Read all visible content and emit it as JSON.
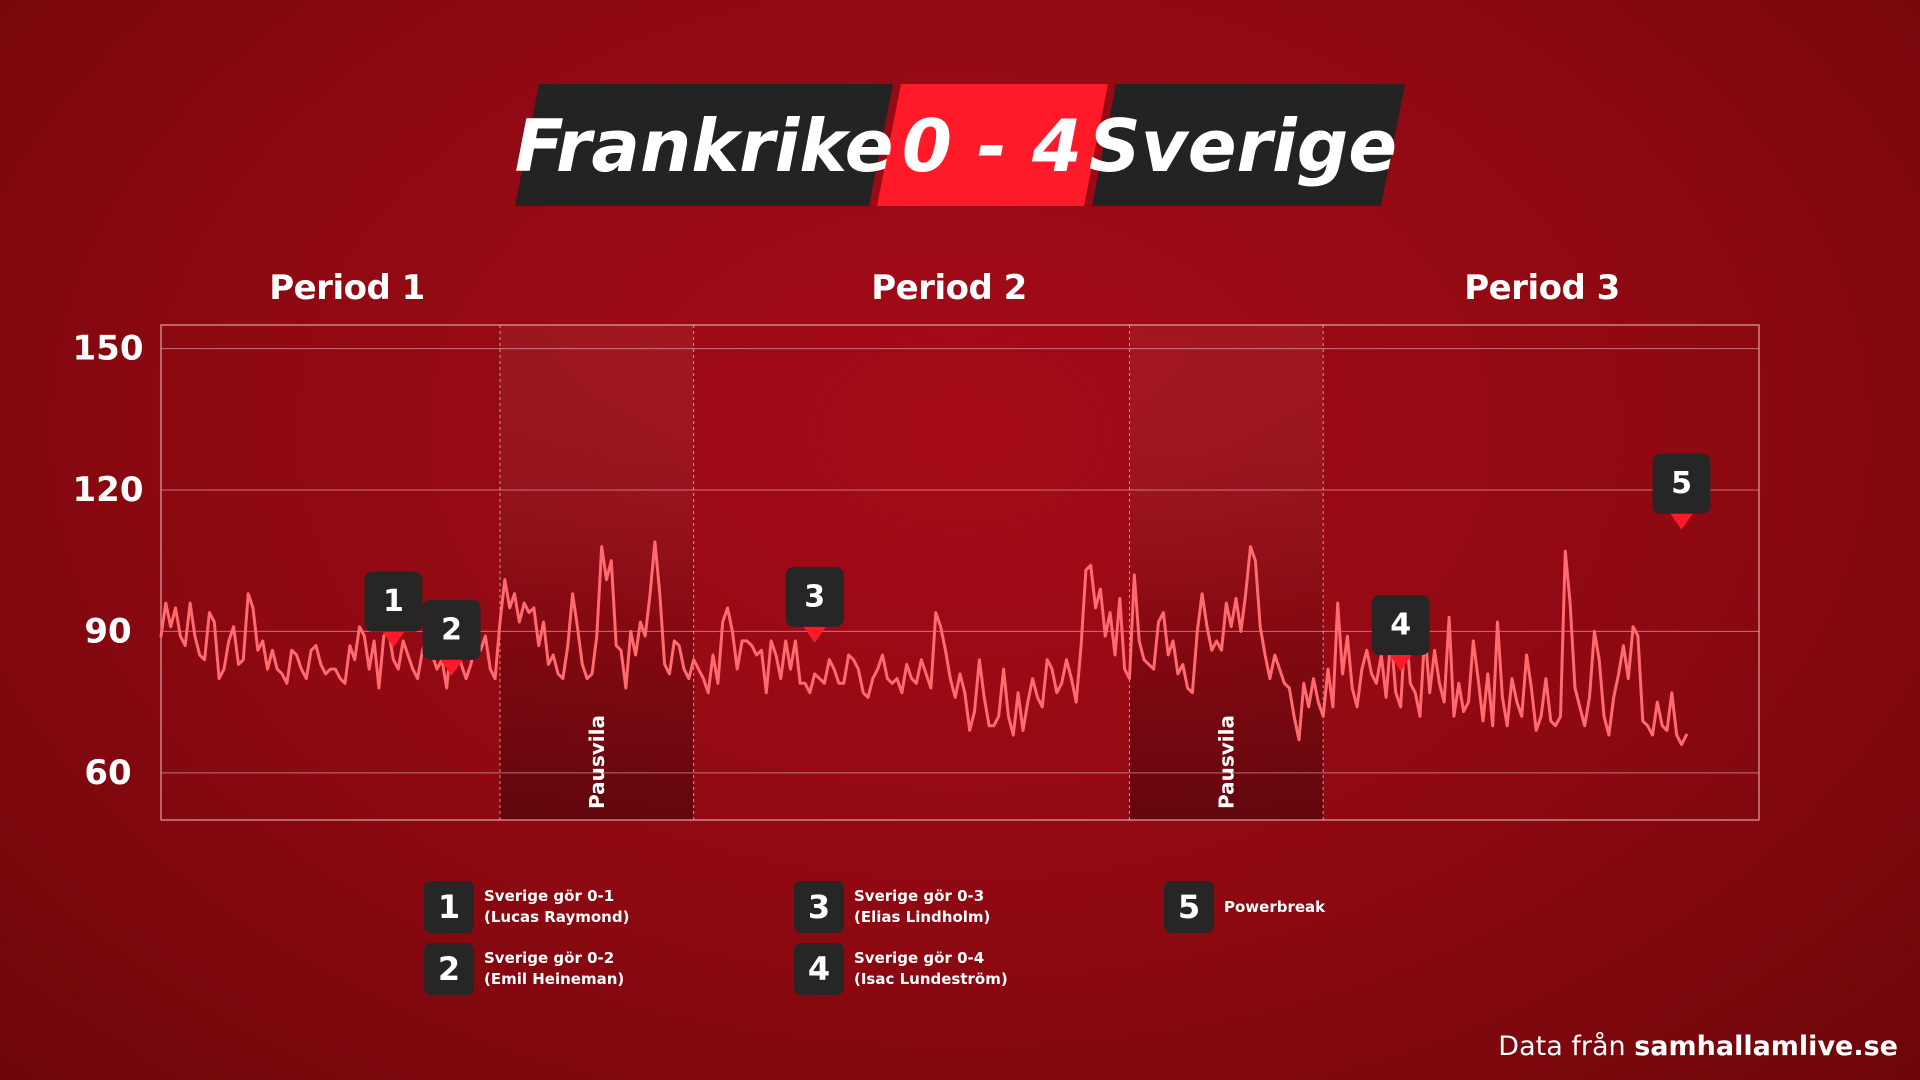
{
  "scoreboard": {
    "home": "Frankrike",
    "score": "0 - 4",
    "away": "Sverige"
  },
  "periods": [
    "Period 1",
    "Period 2",
    "Period 3"
  ],
  "pause_label": "Pausvila",
  "colors": {
    "background": "#9a0a14",
    "accent": "#ff1a2a",
    "line": "#ff6b6e",
    "badge": "#262626"
  },
  "legend": [
    {
      "num": "1",
      "line1": "Sverige gör 0-1",
      "line2": "(Lucas Raymond)"
    },
    {
      "num": "2",
      "line1": "Sverige gör 0-2",
      "line2": "(Emil Heineman)"
    },
    {
      "num": "3",
      "line1": "Sverige gör 0-3",
      "line2": "(Elias Lindholm)"
    },
    {
      "num": "4",
      "line1": "Sverige gör 0-4",
      "line2": "(Isac Lundeström)"
    },
    {
      "num": "5",
      "line1": "Powerbreak",
      "line2": ""
    }
  ],
  "source": {
    "prefix": "Data från",
    "url": "samhallamlive.se"
  },
  "chart_data": {
    "type": "line",
    "title": "",
    "xlabel": "",
    "ylabel": "",
    "ylim": [
      50,
      155
    ],
    "yticks": [
      60,
      90,
      120,
      150
    ],
    "grid": true,
    "series": [
      {
        "values": [
          89,
          96,
          91,
          95,
          89,
          87,
          96,
          89,
          85,
          84,
          94,
          92,
          80,
          82,
          88,
          91,
          83,
          84,
          98,
          95,
          86,
          88,
          82,
          86,
          82,
          81,
          79,
          86,
          85,
          82,
          80,
          86,
          87,
          83,
          81,
          82,
          82,
          80,
          79,
          87,
          84,
          91,
          89,
          82,
          88,
          78,
          89,
          90,
          84,
          82,
          88,
          85,
          82,
          80,
          86,
          89,
          85,
          82,
          84,
          78,
          88,
          86,
          83,
          80,
          83,
          88,
          86,
          89,
          82,
          80,
          92,
          101,
          95,
          98,
          92,
          96,
          94,
          95,
          87,
          92,
          83,
          85,
          81,
          80,
          87,
          98,
          91,
          83,
          80,
          81,
          89,
          108,
          101,
          105,
          87,
          86,
          78,
          90,
          85,
          92,
          89,
          98,
          109,
          98,
          83,
          81,
          88,
          87,
          82,
          80,
          84,
          82,
          80,
          77,
          85,
          79,
          92,
          95,
          90,
          82,
          88,
          88,
          87,
          85,
          86,
          77,
          88,
          85,
          80,
          88,
          82,
          88,
          79,
          79,
          77,
          81,
          80,
          79,
          84,
          82,
          79,
          79,
          85,
          84,
          82,
          77,
          76,
          80,
          82,
          85,
          80,
          79,
          80,
          77,
          83,
          80,
          79,
          84,
          81,
          78,
          94,
          91,
          86,
          80,
          76,
          81,
          77,
          69,
          73,
          84,
          76,
          70,
          70,
          72,
          82,
          72,
          68,
          77,
          69,
          75,
          80,
          76,
          74,
          84,
          82,
          77,
          79,
          84,
          80,
          75,
          87,
          103,
          104,
          95,
          99,
          89,
          94,
          85,
          97,
          82,
          80,
          102,
          88,
          84,
          83,
          82,
          92,
          94,
          85,
          88,
          81,
          83,
          78,
          77,
          90,
          98,
          91,
          86,
          88,
          86,
          96,
          91,
          97,
          90,
          98,
          108,
          105,
          91,
          85,
          80,
          85,
          82,
          79,
          78,
          72,
          67,
          79,
          74,
          80,
          75,
          72,
          82,
          74,
          96,
          81,
          89,
          78,
          74,
          82,
          86,
          81,
          79,
          85,
          76,
          89,
          77,
          74,
          92,
          79,
          77,
          72,
          90,
          77,
          86,
          79,
          75,
          93,
          72,
          79,
          73,
          75,
          88,
          80,
          71,
          81,
          70,
          92,
          76,
          70,
          80,
          75,
          72,
          85,
          78,
          69,
          72,
          80,
          71,
          70,
          72,
          107,
          96,
          78,
          74,
          70,
          76,
          90,
          84,
          72,
          68,
          76,
          81,
          87,
          80,
          91,
          89,
          71,
          70,
          68,
          75,
          70,
          69,
          77,
          68,
          66,
          68
        ]
      }
    ],
    "pauses": [
      {
        "start": 70,
        "end": 110,
        "label": "Pausvila"
      },
      {
        "start": 200,
        "end": 240,
        "label": "Pausvila"
      }
    ],
    "periods_x": [
      [
        0,
        70
      ],
      [
        110,
        200
      ],
      [
        240,
        330
      ]
    ],
    "x_total": 330,
    "markers": [
      {
        "label": "1",
        "x": 48,
        "y": 87
      },
      {
        "label": "2",
        "x": 60,
        "y": 81
      },
      {
        "label": "3",
        "x": 135,
        "y": 88
      },
      {
        "label": "4",
        "x": 256,
        "y": 82
      },
      {
        "label": "5",
        "x": 314,
        "y": 112
      }
    ]
  }
}
